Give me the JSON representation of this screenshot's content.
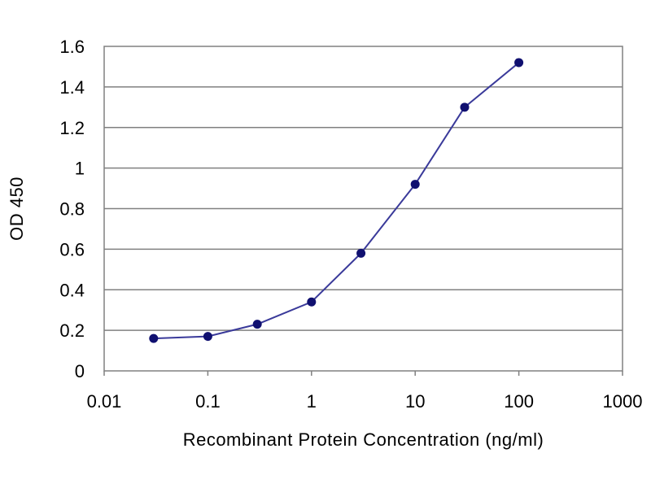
{
  "chart_data": {
    "type": "line",
    "title": "",
    "xlabel": "Recombinant Protein Concentration (ng/ml)",
    "ylabel": "OD 450",
    "x_scale": "log",
    "xlim": [
      0.01,
      1000
    ],
    "ylim": [
      0,
      1.6
    ],
    "x_ticks": [
      "0.01",
      "0.1",
      "1",
      "10",
      "100",
      "1000"
    ],
    "y_ticks": [
      "0",
      "0.2",
      "0.4",
      "0.6",
      "0.8",
      "1",
      "1.2",
      "1.4",
      "1.6"
    ],
    "grid": "horizontal",
    "legend": "none",
    "series": [
      {
        "x": [
          0.03,
          0.1,
          0.3,
          1,
          3,
          10,
          30,
          100
        ],
        "y": [
          0.16,
          0.17,
          0.23,
          0.34,
          0.58,
          0.92,
          1.3,
          1.52
        ]
      }
    ],
    "colors": {
      "line": "#3a3a9a",
      "marker": "#101070",
      "grid": "#808080",
      "frame": "#808080"
    }
  }
}
